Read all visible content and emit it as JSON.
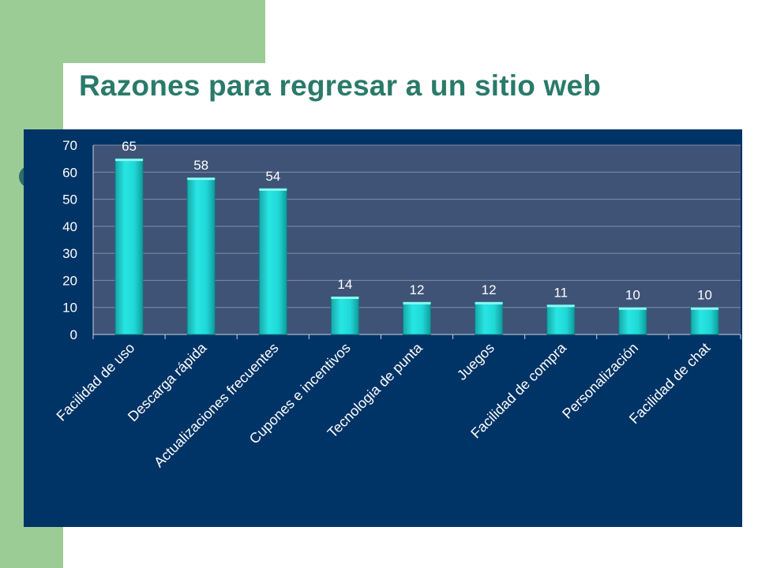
{
  "slide": {
    "title": "Razones para regresar a un sitio web"
  },
  "colors": {
    "plot_background": "#3f5377",
    "panel_background": "#003366",
    "bar_color": "#1fd8d6",
    "title_color": "#2a7a6a",
    "accent_green": "#9ccc95"
  },
  "chart_data": {
    "type": "bar",
    "title": "",
    "xlabel": "",
    "ylabel": "",
    "ylim": [
      0,
      70
    ],
    "yticks": [
      0,
      10,
      20,
      30,
      40,
      50,
      60,
      70
    ],
    "grid": true,
    "categories": [
      "Facilidad de uso",
      "Descarga rápida",
      "Actualizaciones frecuentes",
      "Cupones e incentivos",
      "Tecnologia de punta",
      "Juegos",
      "Facilidad de compra",
      "Personalización",
      "Facilidad de chat"
    ],
    "series": [
      {
        "values": [
          65,
          58,
          54,
          14,
          12,
          12,
          11,
          10,
          10
        ]
      }
    ]
  }
}
